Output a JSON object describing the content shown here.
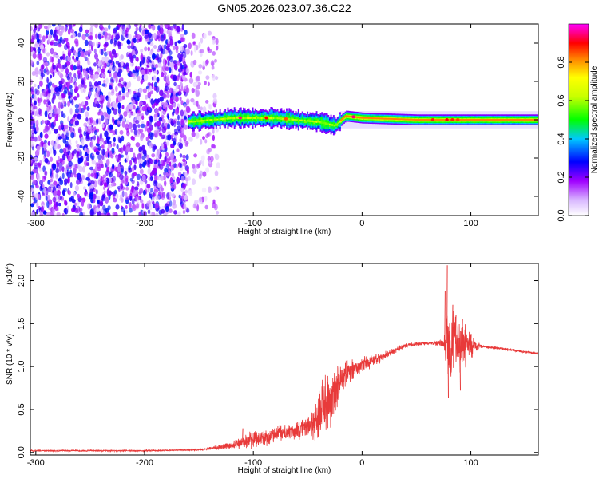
{
  "title": "GN05.2026.023.07.36.C22",
  "chart_data": [
    {
      "type": "heatmap",
      "xlabel": "Height of straight line (km)",
      "ylabel": "Frequency (Hz)",
      "xlim": [
        -305,
        162
      ],
      "ylim": [
        -50,
        50
      ],
      "xticks": [
        -300,
        -200,
        -100,
        0,
        100
      ],
      "xtick_labels": [
        "-300",
        "-200",
        "-100",
        "0",
        "100"
      ],
      "yticks": [
        -40,
        -20,
        0,
        20,
        40
      ],
      "ytick_labels": [
        "-40",
        "-20",
        "0",
        "20",
        "40"
      ],
      "colorbar": {
        "label": "Normalized spectral amplitude",
        "range": [
          0,
          1
        ],
        "ticks": [
          0.0,
          0.2,
          0.4,
          0.6,
          0.8
        ],
        "tick_labels": [
          "0.0",
          "0.2",
          "0.4",
          "0.6",
          "0.8"
        ],
        "colors": [
          "#ffffff",
          "#a000ff",
          "#0000ff",
          "#00ffff",
          "#00ff00",
          "#ffff00",
          "#ff8000",
          "#ff0000",
          "#ff00ff"
        ]
      },
      "regions": [
        {
          "name": "noise",
          "x": [
            -305,
            -140
          ],
          "y": [
            -50,
            50
          ],
          "amplitude": [
            0.05,
            0.3
          ]
        },
        {
          "name": "band",
          "x": [
            -160,
            -20
          ],
          "y": [
            -4,
            4
          ],
          "amplitude": [
            0.25,
            0.55
          ]
        },
        {
          "name": "signal",
          "x": [
            -20,
            162
          ],
          "y": [
            -3,
            3
          ],
          "amplitude": [
            0.6,
            0.9
          ]
        }
      ],
      "ridge": [
        [
          -160,
          -1
        ],
        [
          -120,
          1
        ],
        [
          -80,
          1
        ],
        [
          -60,
          0
        ],
        [
          -40,
          -1
        ],
        [
          -25,
          -3
        ],
        [
          -15,
          2
        ],
        [
          0,
          1
        ],
        [
          50,
          0
        ],
        [
          100,
          0
        ],
        [
          162,
          0
        ]
      ]
    },
    {
      "type": "line",
      "xlabel": "Height of straight line (km)",
      "ylabel": "SNR (10 * v/v)",
      "y_multiplier": "(x10",
      "y_multiplier_exp": "4",
      "y_multiplier_close": ")",
      "xlim": [
        -305,
        162
      ],
      "ylim": [
        -0.03,
        2.2
      ],
      "xticks": [
        -300,
        -200,
        -100,
        0,
        100
      ],
      "xtick_labels": [
        "-300",
        "-200",
        "-100",
        "0",
        "100"
      ],
      "yticks": [
        0.0,
        0.5,
        1.0,
        1.5,
        2.0
      ],
      "ytick_labels": [
        "0.0",
        "0.5",
        "1.0",
        "1.5",
        "2.0"
      ],
      "series_color": "#e83a3a",
      "trend": [
        [
          -305,
          0.02
        ],
        [
          -200,
          0.02
        ],
        [
          -150,
          0.03
        ],
        [
          -120,
          0.08
        ],
        [
          -100,
          0.15
        ],
        [
          -80,
          0.2
        ],
        [
          -60,
          0.25
        ],
        [
          -45,
          0.32
        ],
        [
          -38,
          0.45
        ],
        [
          -30,
          0.6
        ],
        [
          -25,
          0.72
        ],
        [
          -20,
          0.85
        ],
        [
          -15,
          0.9
        ],
        [
          0,
          1.02
        ],
        [
          20,
          1.12
        ],
        [
          35,
          1.22
        ],
        [
          45,
          1.26
        ],
        [
          60,
          1.27
        ],
        [
          80,
          1.27
        ],
        [
          100,
          1.25
        ],
        [
          120,
          1.22
        ],
        [
          140,
          1.19
        ],
        [
          162,
          1.15
        ]
      ],
      "noise": [
        [
          -305,
          0.01
        ],
        [
          -150,
          0.01
        ],
        [
          -120,
          0.05
        ],
        [
          -100,
          0.12
        ],
        [
          -60,
          0.12
        ],
        [
          -50,
          0.15
        ],
        [
          -40,
          0.35
        ],
        [
          -30,
          0.45
        ],
        [
          -20,
          0.22
        ],
        [
          0,
          0.1
        ],
        [
          30,
          0.04
        ],
        [
          60,
          0.02
        ],
        [
          75,
          0.05
        ],
        [
          78,
          0.55
        ],
        [
          82,
          0.45
        ],
        [
          95,
          0.3
        ],
        [
          105,
          0.08
        ],
        [
          110,
          0.02
        ],
        [
          162,
          0.02
        ]
      ],
      "spikes": [
        [
          -110,
          0.28
        ],
        [
          -40,
          0.55
        ],
        [
          -32,
          0.82
        ],
        [
          -30,
          0.75
        ],
        [
          76,
          1.88
        ],
        [
          78,
          2.18
        ],
        [
          79,
          0.63
        ],
        [
          83,
          1.72
        ],
        [
          86,
          1.6
        ],
        [
          90,
          0.72
        ],
        [
          92,
          1.55
        ],
        [
          100,
          1.38
        ]
      ]
    }
  ]
}
